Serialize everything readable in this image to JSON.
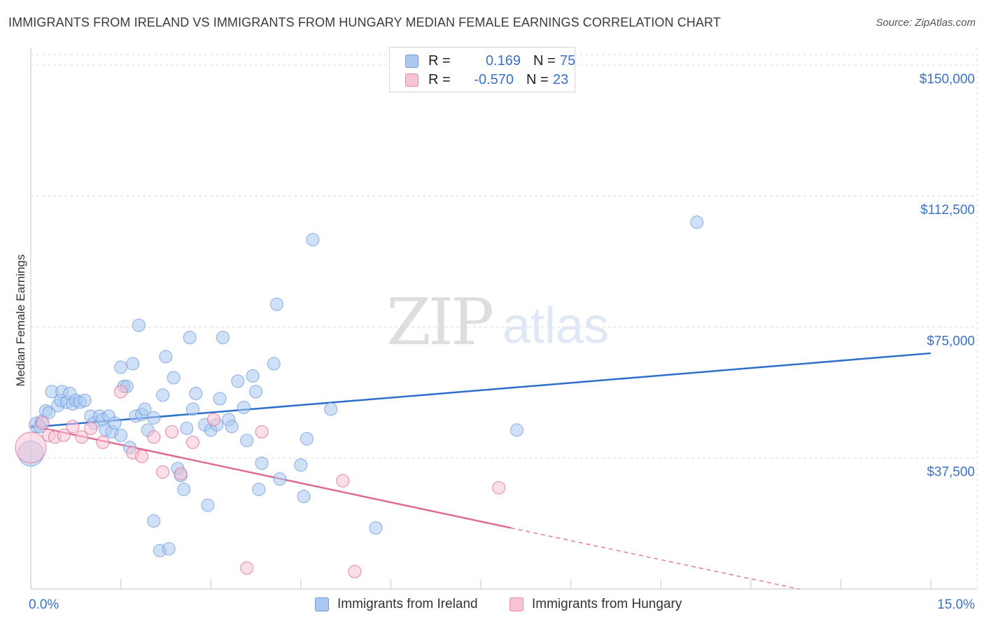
{
  "title": "IMMIGRANTS FROM IRELAND VS IMMIGRANTS FROM HUNGARY MEDIAN FEMALE EARNINGS CORRELATION CHART",
  "source": "Source: ZipAtlas.com",
  "watermark": {
    "zip": "ZIP",
    "atlas": "atlas"
  },
  "legend": {
    "rows": [
      {
        "r_label": "R =",
        "r_value": "0.169",
        "n_label": "N =",
        "n_value": "75",
        "color": "#aac8f0",
        "border": "#6e9be0"
      },
      {
        "r_label": "R =",
        "r_value": "-0.570",
        "n_label": "N =",
        "n_value": "23",
        "color": "#f8c3d3",
        "border": "#e88aa8"
      }
    ]
  },
  "bottom_legend": {
    "ireland": "Immigrants from Ireland",
    "hungary": "Immigrants from Hungary"
  },
  "chart_data": {
    "type": "scatter",
    "title": "IMMIGRANTS FROM IRELAND VS IMMIGRANTS FROM HUNGARY MEDIAN FEMALE EARNINGS CORRELATION CHART",
    "xlabel": "",
    "ylabel": "Median Female Earnings",
    "xlim": [
      0,
      15
    ],
    "ylim": [
      0,
      153000
    ],
    "x_tick_labels": {
      "min": "0.0%",
      "max": "15.0%"
    },
    "y_ticks": [
      {
        "value": 37500,
        "label": "$37,500"
      },
      {
        "value": 75000,
        "label": "$75,000"
      },
      {
        "value": 112500,
        "label": "$112,500"
      },
      {
        "value": 150000,
        "label": "$150,000"
      }
    ],
    "grid": true,
    "series": [
      {
        "name": "Immigrants from Ireland",
        "color": "#6e9be0",
        "fill": "#aac8f0",
        "trend": {
          "x0": 0.0,
          "y0": 46300,
          "x1": 15.0,
          "y1": 67500,
          "dashed_from": null
        },
        "points": [
          [
            0.0,
            38800,
            18
          ],
          [
            0.1,
            47000,
            11
          ],
          [
            0.18,
            48000,
            9
          ],
          [
            0.25,
            51000,
            9
          ],
          [
            0.3,
            50500,
            9
          ],
          [
            0.35,
            56500,
            9
          ],
          [
            0.45,
            52500,
            9
          ],
          [
            0.5,
            54000,
            9
          ],
          [
            0.52,
            56500,
            9
          ],
          [
            0.6,
            53500,
            9
          ],
          [
            0.65,
            56000,
            9
          ],
          [
            0.7,
            53000,
            9
          ],
          [
            0.75,
            54000,
            9
          ],
          [
            0.82,
            53500,
            9
          ],
          [
            0.9,
            54000,
            9
          ],
          [
            1.0,
            49500,
            9
          ],
          [
            1.05,
            47500,
            9
          ],
          [
            1.15,
            49500,
            9
          ],
          [
            1.2,
            48500,
            9
          ],
          [
            1.25,
            45500,
            9
          ],
          [
            1.3,
            49500,
            9
          ],
          [
            1.35,
            45000,
            9
          ],
          [
            1.4,
            47500,
            9
          ],
          [
            1.5,
            44000,
            9
          ],
          [
            1.5,
            63500,
            9
          ],
          [
            1.55,
            58000,
            9
          ],
          [
            1.6,
            58000,
            9
          ],
          [
            1.65,
            40500,
            9
          ],
          [
            1.7,
            64500,
            9
          ],
          [
            1.75,
            49500,
            9
          ],
          [
            1.8,
            75500,
            9
          ],
          [
            1.85,
            50000,
            9
          ],
          [
            1.9,
            51500,
            9
          ],
          [
            1.95,
            45500,
            9
          ],
          [
            2.05,
            49000,
            9
          ],
          [
            2.05,
            19500,
            9
          ],
          [
            2.15,
            11000,
            9
          ],
          [
            2.2,
            55500,
            9
          ],
          [
            2.25,
            66500,
            9
          ],
          [
            2.3,
            11500,
            9
          ],
          [
            2.38,
            60500,
            9
          ],
          [
            2.45,
            34500,
            9
          ],
          [
            2.5,
            32500,
            9
          ],
          [
            2.55,
            28500,
            9
          ],
          [
            2.6,
            46000,
            9
          ],
          [
            2.65,
            72000,
            9
          ],
          [
            2.7,
            51500,
            9
          ],
          [
            2.75,
            56000,
            9
          ],
          [
            2.9,
            47000,
            9
          ],
          [
            2.95,
            24000,
            9
          ],
          [
            3.0,
            45500,
            9
          ],
          [
            3.1,
            47000,
            9
          ],
          [
            3.15,
            54500,
            9
          ],
          [
            3.2,
            72000,
            9
          ],
          [
            3.3,
            48500,
            9
          ],
          [
            3.35,
            46500,
            9
          ],
          [
            3.45,
            59500,
            9
          ],
          [
            3.55,
            52000,
            9
          ],
          [
            3.6,
            42500,
            9
          ],
          [
            3.7,
            61000,
            9
          ],
          [
            3.75,
            56500,
            9
          ],
          [
            3.8,
            28500,
            9
          ],
          [
            3.85,
            36000,
            9
          ],
          [
            4.05,
            64500,
            9
          ],
          [
            4.1,
            81500,
            9
          ],
          [
            4.15,
            31500,
            9
          ],
          [
            4.5,
            35500,
            9
          ],
          [
            4.55,
            26500,
            9
          ],
          [
            4.6,
            43000,
            9
          ],
          [
            4.7,
            100000,
            9
          ],
          [
            5.0,
            51500,
            9
          ],
          [
            5.75,
            17500,
            9
          ],
          [
            8.1,
            45500,
            9
          ],
          [
            11.1,
            105000,
            9
          ],
          [
            0.15,
            46500,
            9
          ]
        ]
      },
      {
        "name": "Immigrants from Hungary",
        "color": "#e06a94",
        "fill": "#f8c3d3",
        "trend": {
          "x0": 0.0,
          "y0": 46800,
          "x1": 8.0,
          "y1": 17500,
          "x_end": 15.0,
          "y_end": -8000
        },
        "points": [
          [
            0.0,
            40500,
            22
          ],
          [
            0.3,
            44000,
            9
          ],
          [
            0.4,
            43500,
            9
          ],
          [
            0.55,
            44000,
            9
          ],
          [
            0.7,
            46500,
            9
          ],
          [
            0.85,
            43500,
            9
          ],
          [
            1.0,
            46000,
            9
          ],
          [
            1.2,
            42000,
            9
          ],
          [
            1.5,
            56500,
            9
          ],
          [
            1.7,
            39000,
            9
          ],
          [
            1.85,
            38000,
            9
          ],
          [
            2.05,
            43500,
            9
          ],
          [
            2.2,
            33500,
            9
          ],
          [
            2.35,
            45000,
            9
          ],
          [
            2.5,
            33000,
            9
          ],
          [
            2.7,
            42000,
            9
          ],
          [
            3.05,
            48500,
            9
          ],
          [
            3.6,
            6000,
            9
          ],
          [
            3.85,
            45000,
            9
          ],
          [
            5.2,
            31000,
            9
          ],
          [
            5.4,
            5000,
            9
          ],
          [
            7.8,
            29000,
            9
          ],
          [
            0.2,
            47500,
            9
          ]
        ]
      }
    ]
  }
}
